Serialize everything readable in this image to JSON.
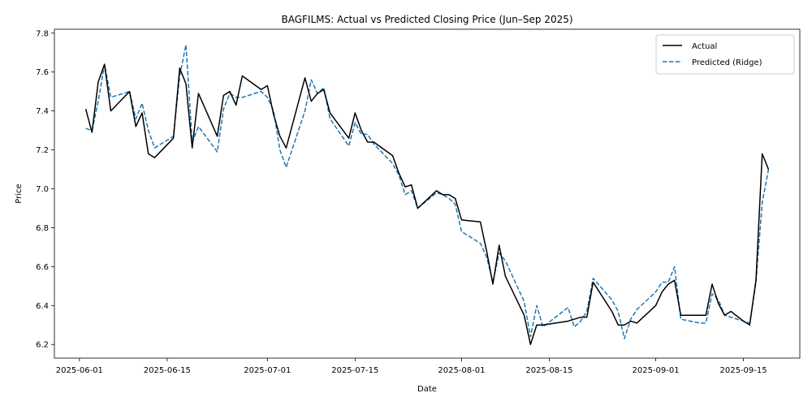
{
  "chart_data": {
    "type": "line",
    "title": "BAGFILMS: Actual vs Predicted Closing Price (Jun–Sep 2025)",
    "xlabel": "Date",
    "ylabel": "Price",
    "ylim": [
      6.13,
      7.82
    ],
    "xlim": [
      "2025-05-28",
      "2025-09-24"
    ],
    "x_ticks": [
      "2025-06-01",
      "2025-06-15",
      "2025-07-01",
      "2025-07-15",
      "2025-08-01",
      "2025-08-15",
      "2025-09-01",
      "2025-09-15"
    ],
    "y_ticks": [
      6.2,
      6.4,
      6.6,
      6.8,
      7.0,
      7.2,
      7.4,
      7.6,
      7.8
    ],
    "y_tick_labels": [
      "6.2",
      "6.4",
      "6.6",
      "6.8",
      "7.0",
      "7.2",
      "7.4",
      "7.6",
      "7.8"
    ],
    "grid": false,
    "legend_position": "top-right",
    "series": [
      {
        "name": "Actual",
        "color": "#000000",
        "style": "solid",
        "points": [
          [
            "2025-06-02",
            7.41
          ],
          [
            "2025-06-03",
            7.29
          ],
          [
            "2025-06-04",
            7.55
          ],
          [
            "2025-06-05",
            7.64
          ],
          [
            "2025-06-06",
            7.4
          ],
          [
            "2025-06-09",
            7.5
          ],
          [
            "2025-06-10",
            7.32
          ],
          [
            "2025-06-11",
            7.39
          ],
          [
            "2025-06-12",
            7.18
          ],
          [
            "2025-06-13",
            7.16
          ],
          [
            "2025-06-16",
            7.26
          ],
          [
            "2025-06-17",
            7.62
          ],
          [
            "2025-06-18",
            7.54
          ],
          [
            "2025-06-19",
            7.21
          ],
          [
            "2025-06-20",
            7.49
          ],
          [
            "2025-06-23",
            7.27
          ],
          [
            "2025-06-24",
            7.48
          ],
          [
            "2025-06-25",
            7.5
          ],
          [
            "2025-06-26",
            7.43
          ],
          [
            "2025-06-27",
            7.58
          ],
          [
            "2025-06-30",
            7.51
          ],
          [
            "2025-07-01",
            7.53
          ],
          [
            "2025-07-02",
            7.38
          ],
          [
            "2025-07-03",
            7.27
          ],
          [
            "2025-07-04",
            7.21
          ],
          [
            "2025-07-07",
            7.57
          ],
          [
            "2025-07-08",
            7.45
          ],
          [
            "2025-07-09",
            7.49
          ],
          [
            "2025-07-10",
            7.51
          ],
          [
            "2025-07-11",
            7.39
          ],
          [
            "2025-07-14",
            7.26
          ],
          [
            "2025-07-15",
            7.39
          ],
          [
            "2025-07-16",
            7.3
          ],
          [
            "2025-07-17",
            7.24
          ],
          [
            "2025-07-18",
            7.24
          ],
          [
            "2025-07-21",
            7.17
          ],
          [
            "2025-07-22",
            7.08
          ],
          [
            "2025-07-23",
            7.01
          ],
          [
            "2025-07-24",
            7.02
          ],
          [
            "2025-07-25",
            6.9
          ],
          [
            "2025-07-28",
            6.99
          ],
          [
            "2025-07-29",
            6.97
          ],
          [
            "2025-07-30",
            6.97
          ],
          [
            "2025-07-31",
            6.95
          ],
          [
            "2025-08-01",
            6.84
          ],
          [
            "2025-08-04",
            6.83
          ],
          [
            "2025-08-05",
            6.68
          ],
          [
            "2025-08-06",
            6.51
          ],
          [
            "2025-08-07",
            6.71
          ],
          [
            "2025-08-08",
            6.55
          ],
          [
            "2025-08-11",
            6.35
          ],
          [
            "2025-08-12",
            6.2
          ],
          [
            "2025-08-13",
            6.3
          ],
          [
            "2025-08-14",
            6.3
          ],
          [
            "2025-08-18",
            6.32
          ],
          [
            "2025-08-19",
            6.33
          ],
          [
            "2025-08-20",
            6.34
          ],
          [
            "2025-08-21",
            6.34
          ],
          [
            "2025-08-22",
            6.52
          ],
          [
            "2025-08-25",
            6.37
          ],
          [
            "2025-08-26",
            6.3
          ],
          [
            "2025-08-27",
            6.3
          ],
          [
            "2025-08-28",
            6.32
          ],
          [
            "2025-08-29",
            6.31
          ],
          [
            "2025-09-01",
            6.4
          ],
          [
            "2025-09-02",
            6.47
          ],
          [
            "2025-09-03",
            6.51
          ],
          [
            "2025-09-04",
            6.53
          ],
          [
            "2025-09-05",
            6.35
          ],
          [
            "2025-09-08",
            6.35
          ],
          [
            "2025-09-09",
            6.35
          ],
          [
            "2025-09-10",
            6.51
          ],
          [
            "2025-09-11",
            6.41
          ],
          [
            "2025-09-12",
            6.35
          ],
          [
            "2025-09-13",
            6.37
          ],
          [
            "2025-09-15",
            6.32
          ],
          [
            "2025-09-16",
            6.3
          ],
          [
            "2025-09-17",
            6.53
          ],
          [
            "2025-09-18",
            7.18
          ],
          [
            "2025-09-19",
            7.1
          ]
        ]
      },
      {
        "name": "Predicted (Ridge)",
        "color": "#1f77b4",
        "style": "dashed",
        "points": [
          [
            "2025-06-02",
            7.31
          ],
          [
            "2025-06-03",
            7.3
          ],
          [
            "2025-06-04",
            7.45
          ],
          [
            "2025-06-05",
            7.64
          ],
          [
            "2025-06-06",
            7.47
          ],
          [
            "2025-06-09",
            7.5
          ],
          [
            "2025-06-10",
            7.36
          ],
          [
            "2025-06-11",
            7.44
          ],
          [
            "2025-06-12",
            7.3
          ],
          [
            "2025-06-13",
            7.21
          ],
          [
            "2025-06-16",
            7.27
          ],
          [
            "2025-06-17",
            7.58
          ],
          [
            "2025-06-18",
            7.74
          ],
          [
            "2025-06-19",
            7.24
          ],
          [
            "2025-06-20",
            7.32
          ],
          [
            "2025-06-23",
            7.19
          ],
          [
            "2025-06-24",
            7.41
          ],
          [
            "2025-06-25",
            7.49
          ],
          [
            "2025-06-26",
            7.47
          ],
          [
            "2025-06-27",
            7.47
          ],
          [
            "2025-06-30",
            7.5
          ],
          [
            "2025-07-01",
            7.47
          ],
          [
            "2025-07-02",
            7.4
          ],
          [
            "2025-07-03",
            7.2
          ],
          [
            "2025-07-04",
            7.11
          ],
          [
            "2025-07-07",
            7.4
          ],
          [
            "2025-07-08",
            7.56
          ],
          [
            "2025-07-09",
            7.49
          ],
          [
            "2025-07-10",
            7.52
          ],
          [
            "2025-07-11",
            7.36
          ],
          [
            "2025-07-14",
            7.22
          ],
          [
            "2025-07-15",
            7.34
          ],
          [
            "2025-07-16",
            7.28
          ],
          [
            "2025-07-17",
            7.28
          ],
          [
            "2025-07-18",
            7.23
          ],
          [
            "2025-07-21",
            7.13
          ],
          [
            "2025-07-22",
            7.07
          ],
          [
            "2025-07-23",
            6.97
          ],
          [
            "2025-07-24",
            6.99
          ],
          [
            "2025-07-25",
            6.9
          ],
          [
            "2025-07-28",
            6.98
          ],
          [
            "2025-07-29",
            6.97
          ],
          [
            "2025-07-30",
            6.95
          ],
          [
            "2025-07-31",
            6.92
          ],
          [
            "2025-08-01",
            6.78
          ],
          [
            "2025-08-04",
            6.72
          ],
          [
            "2025-08-05",
            6.65
          ],
          [
            "2025-08-06",
            6.52
          ],
          [
            "2025-08-07",
            6.67
          ],
          [
            "2025-08-08",
            6.63
          ],
          [
            "2025-08-11",
            6.42
          ],
          [
            "2025-08-12",
            6.24
          ],
          [
            "2025-08-13",
            6.4
          ],
          [
            "2025-08-14",
            6.29
          ],
          [
            "2025-08-18",
            6.39
          ],
          [
            "2025-08-19",
            6.29
          ],
          [
            "2025-08-20",
            6.32
          ],
          [
            "2025-08-21",
            6.37
          ],
          [
            "2025-08-22",
            6.54
          ],
          [
            "2025-08-25",
            6.43
          ],
          [
            "2025-08-26",
            6.37
          ],
          [
            "2025-08-27",
            6.23
          ],
          [
            "2025-08-28",
            6.33
          ],
          [
            "2025-08-29",
            6.38
          ],
          [
            "2025-09-01",
            6.47
          ],
          [
            "2025-09-02",
            6.52
          ],
          [
            "2025-09-03",
            6.52
          ],
          [
            "2025-09-04",
            6.6
          ],
          [
            "2025-09-05",
            6.33
          ],
          [
            "2025-09-08",
            6.31
          ],
          [
            "2025-09-09",
            6.31
          ],
          [
            "2025-09-10",
            6.46
          ],
          [
            "2025-09-11",
            6.43
          ],
          [
            "2025-09-12",
            6.35
          ],
          [
            "2025-09-13",
            6.34
          ],
          [
            "2025-09-15",
            6.32
          ],
          [
            "2025-09-16",
            6.31
          ],
          [
            "2025-09-17",
            6.52
          ],
          [
            "2025-09-18",
            6.93
          ],
          [
            "2025-09-19",
            7.1
          ]
        ]
      }
    ]
  }
}
